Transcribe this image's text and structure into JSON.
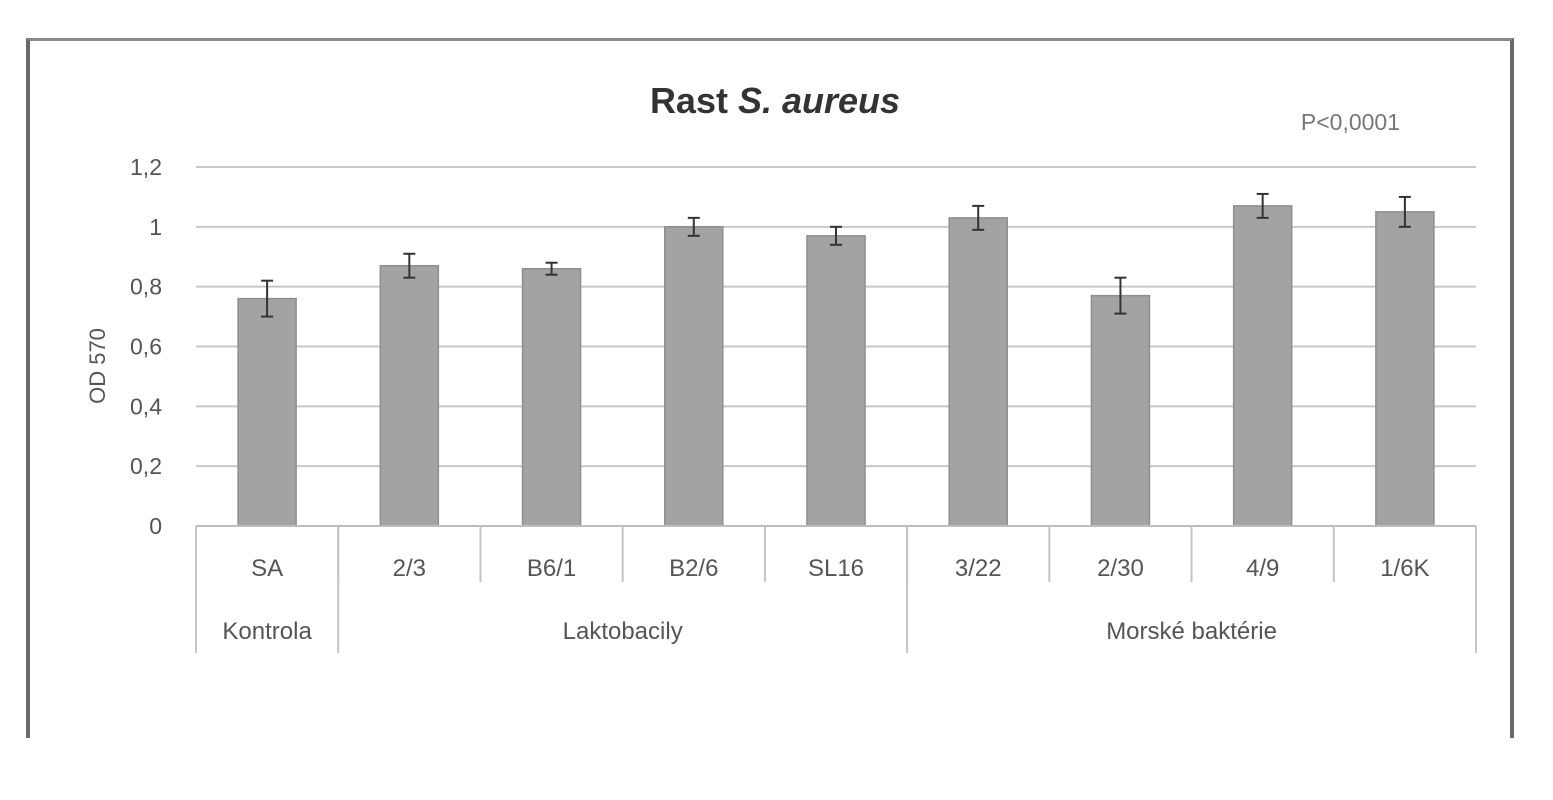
{
  "chart_data": {
    "type": "bar",
    "title_prefix": "Rast ",
    "title_italic": "S. aureus",
    "annotation": "P<0,0001",
    "ylabel": "OD 570",
    "xlabel": "",
    "ylim": [
      0,
      1.2
    ],
    "yticks": [
      0,
      0.2,
      0.4,
      0.6,
      0.8,
      1,
      1.2
    ],
    "ytick_labels": [
      "0",
      "0,2",
      "0,4",
      "0,6",
      "0,8",
      "1",
      "1,2"
    ],
    "grid": true,
    "bar_color": "#a3a3a3",
    "categories": [
      "SA",
      "2/3",
      "B6/1",
      "B2/6",
      "SL16",
      "3/22",
      "2/30",
      "4/9",
      "1/6K"
    ],
    "values": [
      0.76,
      0.87,
      0.86,
      1.0,
      0.97,
      1.03,
      0.77,
      1.07,
      1.05
    ],
    "errors": [
      0.06,
      0.04,
      0.02,
      0.03,
      0.03,
      0.04,
      0.06,
      0.04,
      0.05
    ],
    "groups": [
      {
        "label": "Kontrola",
        "count": 1
      },
      {
        "label": "Laktobacily",
        "count": 4
      },
      {
        "label": "Morské baktérie",
        "count": 4
      }
    ]
  }
}
